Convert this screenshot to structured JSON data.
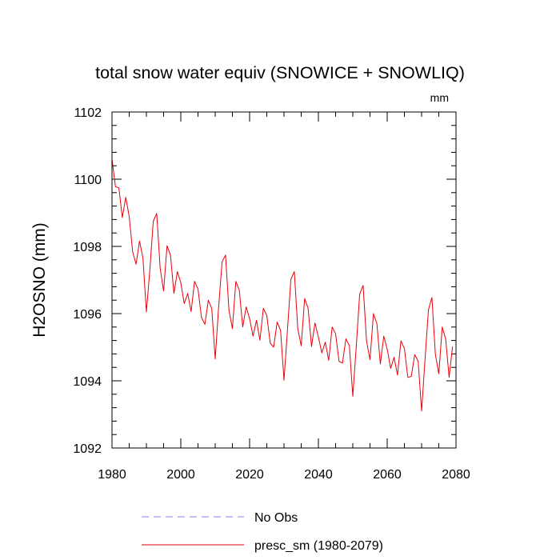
{
  "chart_data": {
    "type": "line",
    "title": "total snow water equiv (SNOWICE + SNOWLIQ)",
    "units_label": "mm",
    "xlabel": "",
    "ylabel": "H2OSNO  (mm)",
    "xlim": [
      1980,
      2080
    ],
    "ylim": [
      1092,
      1102
    ],
    "x_ticks": [
      1980,
      2000,
      2020,
      2040,
      2060,
      2080
    ],
    "y_ticks": [
      1092,
      1094,
      1096,
      1098,
      1100,
      1102
    ],
    "x_tick_labels": [
      "1980",
      "2000",
      "2020",
      "2040",
      "2060",
      "2080"
    ],
    "y_tick_labels": [
      "1092",
      "1094",
      "1096",
      "1098",
      "1100",
      "1102"
    ],
    "legend": [
      {
        "label": "No Obs",
        "color": "#8080ff",
        "dash": true
      },
      {
        "label": "presc_sm (1980-2079)",
        "color": "#e8000b",
        "dash": false
      }
    ],
    "series": [
      {
        "name": "presc_sm (1980-2079)",
        "color": "#e8000b",
        "x": [
          1980,
          1981,
          1982,
          1983,
          1984,
          1985,
          1986,
          1987,
          1988,
          1989,
          1990,
          1991,
          1992,
          1993,
          1994,
          1995,
          1996,
          1997,
          1998,
          1999,
          2000,
          2001,
          2002,
          2003,
          2004,
          2005,
          2006,
          2007,
          2008,
          2009,
          2010,
          2011,
          2012,
          2013,
          2014,
          2015,
          2016,
          2017,
          2018,
          2019,
          2020,
          2021,
          2022,
          2023,
          2024,
          2025,
          2026,
          2027,
          2028,
          2029,
          2030,
          2031,
          2032,
          2033,
          2034,
          2035,
          2036,
          2037,
          2038,
          2039,
          2040,
          2041,
          2042,
          2043,
          2044,
          2045,
          2046,
          2047,
          2048,
          2049,
          2050,
          2051,
          2052,
          2053,
          2054,
          2055,
          2056,
          2057,
          2058,
          2059,
          2060,
          2061,
          2062,
          2063,
          2064,
          2065,
          2066,
          2067,
          2068,
          2069,
          2070,
          2071,
          2072,
          2073,
          2074,
          2075,
          2076,
          2077,
          2078,
          2079
        ],
        "values": [
          1100.6,
          1099.78,
          1099.74,
          1098.86,
          1099.46,
          1098.89,
          1097.84,
          1097.47,
          1098.16,
          1097.65,
          1096.05,
          1097.3,
          1098.75,
          1098.98,
          1097.35,
          1096.67,
          1098.02,
          1097.74,
          1096.6,
          1097.25,
          1096.92,
          1096.3,
          1096.6,
          1096.06,
          1096.96,
          1096.73,
          1095.89,
          1095.68,
          1096.4,
          1096.15,
          1094.65,
          1096.2,
          1097.54,
          1097.74,
          1096.1,
          1095.55,
          1096.96,
          1096.7,
          1095.6,
          1096.2,
          1095.85,
          1095.33,
          1095.8,
          1095.21,
          1096.16,
          1095.94,
          1095.12,
          1095.0,
          1095.75,
          1095.5,
          1094.02,
          1095.5,
          1097.02,
          1097.25,
          1095.56,
          1095.04,
          1096.45,
          1096.16,
          1095.02,
          1095.72,
          1095.3,
          1094.83,
          1095.15,
          1094.61,
          1095.6,
          1095.4,
          1094.58,
          1094.53,
          1095.25,
          1095.05,
          1093.54,
          1095.01,
          1096.58,
          1096.84,
          1095.18,
          1094.63,
          1096.0,
          1095.7,
          1094.5,
          1095.33,
          1094.94,
          1094.37,
          1094.7,
          1094.17,
          1095.19,
          1094.96,
          1094.1,
          1094.13,
          1094.78,
          1094.58,
          1093.1,
          1094.64,
          1096.12,
          1096.48,
          1094.79,
          1094.21,
          1095.6,
          1095.24,
          1094.1,
          1095.02
        ]
      }
    ]
  }
}
